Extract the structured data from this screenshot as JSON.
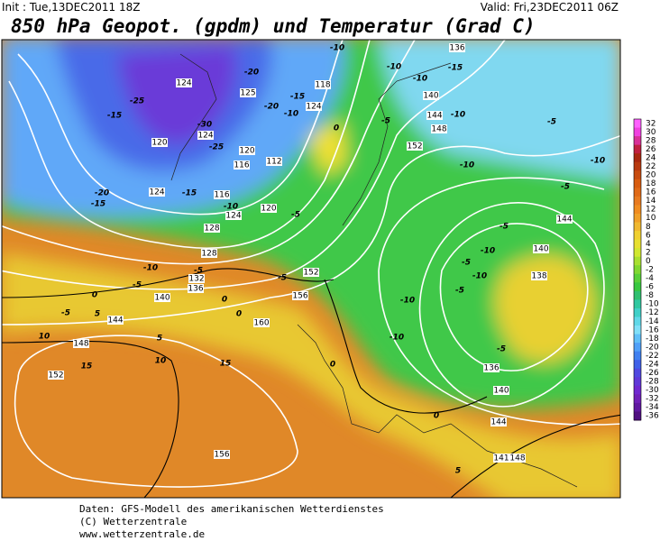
{
  "header": {
    "init": "Init : Tue,13DEC2011 18Z",
    "valid": "Valid: Fri,23DEC2011 06Z",
    "title": "850 hPa Geopot. (gpdm) und Temperatur (Grad C)"
  },
  "colorbar": {
    "ticks": [
      32,
      30,
      28,
      26,
      24,
      22,
      20,
      18,
      16,
      14,
      12,
      10,
      8,
      6,
      4,
      2,
      0,
      -2,
      -4,
      -6,
      -8,
      -10,
      -12,
      -14,
      -16,
      -18,
      -20,
      -22,
      -24,
      -26,
      -28,
      -30,
      -32,
      -34,
      -36
    ],
    "colors": [
      "#ff60ff",
      "#f040e0",
      "#d83098",
      "#c02040",
      "#a82810",
      "#b83a10",
      "#c84c10",
      "#d85c10",
      "#e06a18",
      "#e87a20",
      "#f08c20",
      "#f0a028",
      "#f0b830",
      "#f0d030",
      "#e8e030",
      "#d0e830",
      "#a8e030",
      "#80d830",
      "#58d038",
      "#38c840",
      "#30c070",
      "#30c8a0",
      "#40d0c8",
      "#60d8e8",
      "#80e0f8",
      "#60c0f8",
      "#50a0f8",
      "#4080f0",
      "#4060e8",
      "#5048e0",
      "#6038d8",
      "#7028d0",
      "#7020b8",
      "#6018a0",
      "#501080"
    ]
  },
  "geopotential_labels": [
    124,
    125,
    118,
    124,
    120,
    124,
    120,
    116,
    112,
    116,
    124,
    124,
    120,
    128,
    128,
    132,
    136,
    140,
    144,
    148,
    152,
    156,
    160,
    156,
    152,
    152,
    148,
    144,
    140,
    136,
    140,
    138,
    144,
    136,
    140,
    144,
    148,
    141
  ],
  "temperature_labels": [
    -20,
    -15,
    -10,
    -20,
    -25,
    -15,
    -30,
    -25,
    -15,
    -20,
    -15,
    -10,
    -5,
    -10,
    -5,
    -5,
    0,
    0,
    -5,
    0,
    -5,
    -10,
    -10,
    -15,
    -10,
    -5,
    -10,
    -5,
    -10,
    -5,
    -5,
    -10,
    -5,
    -10,
    -5,
    -10,
    -10,
    -5,
    0,
    0,
    0,
    5,
    10,
    5,
    10,
    15,
    15,
    5,
    -10
  ],
  "footer": [
    "Daten: GFS-Modell des amerikanischen Wetterdienstes",
    "(C) Wetterzentrale",
    "www.wetterzentrale.de"
  ]
}
